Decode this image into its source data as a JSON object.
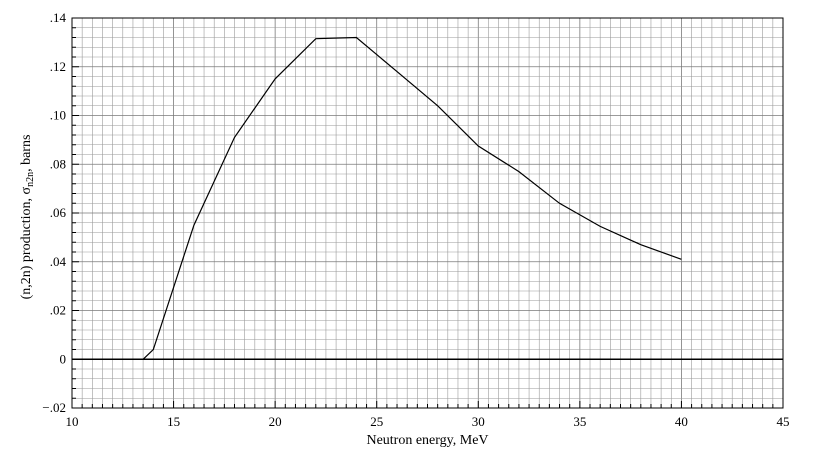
{
  "chart_data": {
    "type": "line",
    "title": "",
    "xlabel": "Neutron energy, MeV",
    "ylabel": {
      "main": "(n,2n) production, σ",
      "sub": "n2n",
      "suffix": ", barns"
    },
    "xlim": [
      10,
      45
    ],
    "ylim": [
      -0.02,
      0.14
    ],
    "xticks": [
      10,
      15,
      20,
      25,
      30,
      35,
      40,
      45
    ],
    "xtick_labels": [
      "10",
      "15",
      "20",
      "25",
      "30",
      "35",
      "40",
      "45"
    ],
    "yticks": [
      -0.02,
      0,
      0.02,
      0.04,
      0.06,
      0.08,
      0.1,
      0.12,
      0.14
    ],
    "ytick_labels": [
      "−.02",
      "0",
      ".02",
      ".04",
      ".06",
      ".08",
      ".10",
      ".12",
      ".14"
    ],
    "grid": true,
    "reference_line_y": 0,
    "series": [
      {
        "x": [
          13.5,
          14,
          16,
          18,
          20,
          22,
          24,
          26,
          28,
          30,
          32,
          34,
          36,
          38,
          40
        ],
        "y": [
          0.0,
          0.004,
          0.055,
          0.091,
          0.115,
          0.1315,
          0.132,
          0.118,
          0.104,
          0.0875,
          0.077,
          0.064,
          0.0545,
          0.047,
          0.041
        ]
      }
    ]
  }
}
